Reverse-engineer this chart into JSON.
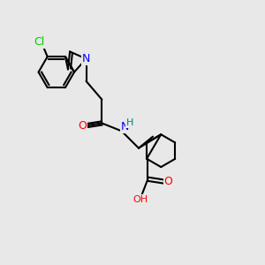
{
  "background_color": "#e8e8e8",
  "bond_color": "#000000",
  "atom_colors": {
    "N": "#0000ff",
    "O": "#ff0000",
    "Cl": "#00cc00",
    "H": "#008080",
    "C": "#000000"
  },
  "font_size_atoms": 9,
  "font_size_small": 7,
  "figsize": [
    3.0,
    3.0
  ],
  "dpi": 100
}
